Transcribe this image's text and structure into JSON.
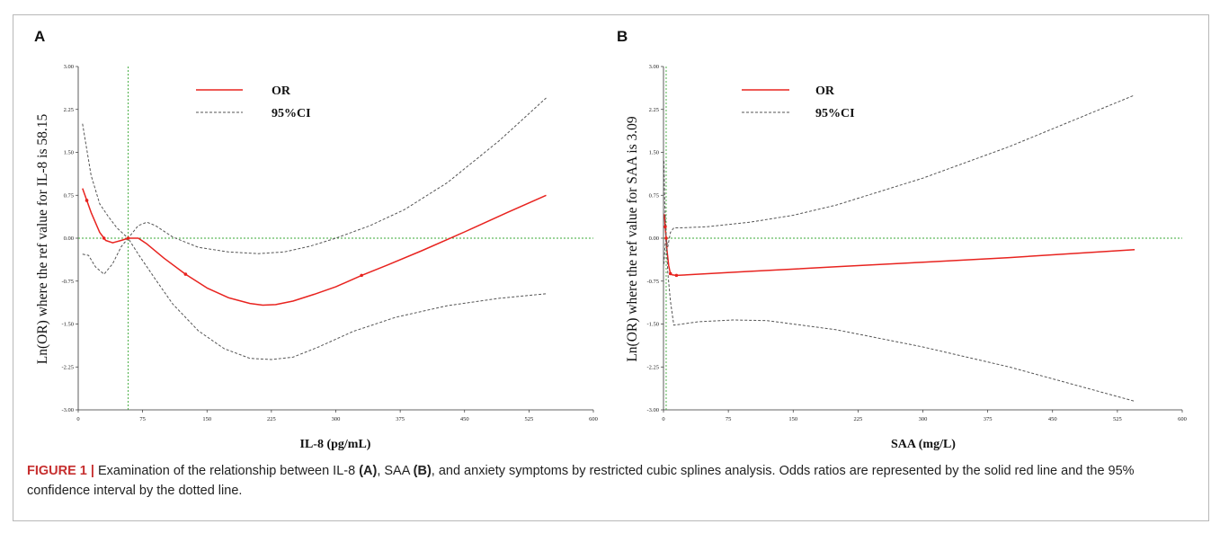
{
  "chart_data": [
    {
      "type": "line",
      "panel_label": "A",
      "xlabel": "IL-8 (pg/mL)",
      "ylabel": "Ln(OR) where the ref value for IL-8 is 58.15",
      "xlim": [
        0,
        600
      ],
      "ylim": [
        -3.0,
        3.0
      ],
      "xticks": [
        "0",
        "75",
        "150",
        "225",
        "300",
        "375",
        "450",
        "525",
        "600"
      ],
      "yticks": [
        "3.00",
        "2.25",
        "1.50",
        "0.75",
        "0.00",
        "-0.75",
        "-1.50",
        "-2.25",
        "-3.00"
      ],
      "ref_x": 58.15,
      "ref_y": 0,
      "legend": [
        "OR",
        "95%CI"
      ],
      "legend_position": "top-left",
      "series": [
        {
          "name": "OR",
          "color": "#e8231f",
          "style": "solid",
          "x": [
            5,
            15,
            25,
            32,
            40,
            50,
            58.15,
            70,
            80,
            100,
            125,
            150,
            175,
            200,
            215,
            230,
            250,
            275,
            300,
            330,
            360,
            400,
            450,
            500,
            545
          ],
          "y": [
            0.87,
            0.45,
            0.1,
            -0.04,
            -0.08,
            -0.04,
            0.0,
            0.0,
            -0.1,
            -0.35,
            -0.63,
            -0.87,
            -1.04,
            -1.14,
            -1.17,
            -1.16,
            -1.1,
            -0.98,
            -0.85,
            -0.65,
            -0.47,
            -0.22,
            0.11,
            0.45,
            0.75
          ]
        },
        {
          "name": "95%CI upper",
          "color": "#555555",
          "style": "dashed",
          "x": [
            5,
            15,
            25,
            35,
            45,
            58.15,
            70,
            80,
            90,
            110,
            140,
            175,
            210,
            240,
            270,
            300,
            340,
            380,
            430,
            490,
            545
          ],
          "y": [
            2.0,
            1.1,
            0.6,
            0.38,
            0.18,
            0.0,
            0.22,
            0.28,
            0.22,
            0.02,
            -0.16,
            -0.24,
            -0.27,
            -0.24,
            -0.14,
            0.0,
            0.22,
            0.5,
            0.97,
            1.7,
            2.45
          ]
        },
        {
          "name": "95%CI lower",
          "color": "#555555",
          "style": "dashed",
          "x": [
            5,
            12,
            20,
            30,
            40,
            50,
            58.15,
            70,
            90,
            110,
            140,
            170,
            200,
            225,
            250,
            280,
            320,
            370,
            430,
            490,
            545
          ],
          "y": [
            -0.28,
            -0.3,
            -0.5,
            -0.63,
            -0.45,
            -0.15,
            0.0,
            -0.28,
            -0.72,
            -1.15,
            -1.62,
            -1.93,
            -2.1,
            -2.12,
            -2.08,
            -1.9,
            -1.63,
            -1.38,
            -1.18,
            -1.05,
            -0.97
          ]
        }
      ]
    },
    {
      "type": "line",
      "panel_label": "B",
      "xlabel": "SAA (mg/L)",
      "ylabel": "Ln(OR) where the ref value for SAA is 3.09",
      "xlim": [
        0,
        600
      ],
      "ylim": [
        -3.0,
        3.0
      ],
      "xticks": [
        "0",
        "75",
        "150",
        "225",
        "300",
        "375",
        "450",
        "525",
        "600"
      ],
      "yticks": [
        "3.00",
        "2.25",
        "1.50",
        "0.75",
        "0.00",
        "-0.75",
        "-1.50",
        "-2.25",
        "-3.00"
      ],
      "ref_x": 3.09,
      "ref_y": 0,
      "legend": [
        "OR",
        "95%CI"
      ],
      "legend_position": "top-left",
      "series": [
        {
          "name": "OR",
          "color": "#e8231f",
          "style": "solid",
          "x": [
            1,
            2,
            3.09,
            4,
            6,
            8,
            10,
            15,
            100,
            200,
            300,
            400,
            545
          ],
          "y": [
            0.42,
            0.2,
            0.0,
            -0.2,
            -0.48,
            -0.62,
            -0.64,
            -0.65,
            -0.58,
            -0.5,
            -0.42,
            -0.34,
            -0.2
          ]
        },
        {
          "name": "95%CI upper",
          "color": "#555555",
          "style": "dashed",
          "x": [
            0.5,
            1.5,
            3.09,
            5,
            8,
            12,
            20,
            50,
            100,
            150,
            200,
            300,
            400,
            545
          ],
          "y": [
            1.35,
            0.6,
            0.0,
            -0.15,
            0.1,
            0.18,
            0.18,
            0.2,
            0.28,
            0.4,
            0.58,
            1.05,
            1.6,
            2.5
          ]
        },
        {
          "name": "95%CI lower",
          "color": "#555555",
          "style": "dashed",
          "x": [
            0.5,
            2,
            3.09,
            5,
            8,
            12,
            40,
            80,
            120,
            200,
            300,
            400,
            545
          ],
          "y": [
            -0.45,
            -0.1,
            0.0,
            -0.6,
            -1.1,
            -1.52,
            -1.46,
            -1.43,
            -1.44,
            -1.6,
            -1.9,
            -2.25,
            -2.85
          ]
        }
      ]
    }
  ],
  "caption": {
    "label": "FIGURE 1 |",
    "text_before_a": " Examination of the relationship between IL-8 ",
    "marker_a": "(A)",
    "text_between": ", SAA ",
    "marker_b": "(B)",
    "text_after_b": ", and anxiety symptoms by restricted cubic splines analysis. Odds ratios are represented by the solid red line and the 95% confidence interval by the dotted line."
  },
  "colors": {
    "or_line": "#e8231f",
    "ci_line": "#555555",
    "ref_line": "#3aa835",
    "caption_label": "#c62f2f"
  }
}
